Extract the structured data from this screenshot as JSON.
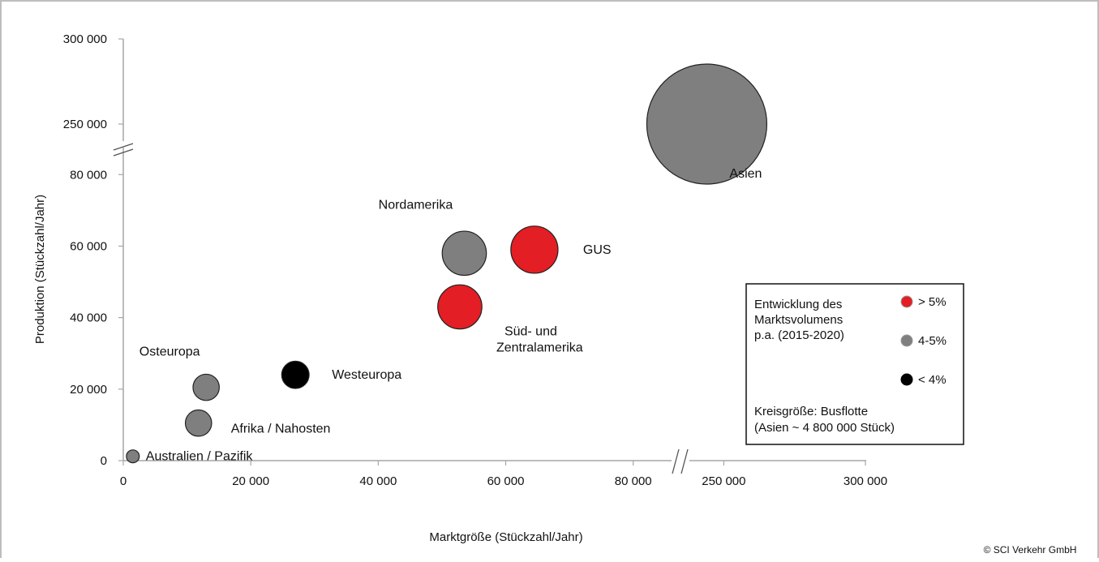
{
  "chart_data": {
    "type": "scatter",
    "subtype": "bubble",
    "title": "",
    "xlabel": "Marktgröße (Stückzahl/Jahr)",
    "ylabel": "Produktion (Stückzahl/Jahr)",
    "axis_breaks": true,
    "grid": false,
    "x_ticks": [
      "0",
      "20 000",
      "40 000",
      "60 000",
      "80 000",
      "250 000",
      "300 000"
    ],
    "y_ticks": [
      "0",
      "20 000",
      "40 000",
      "60 000",
      "80 000",
      "250 000",
      "300 000"
    ],
    "x_segments": [
      {
        "from": 0,
        "to": 85000
      },
      {
        "from": 235000,
        "to": 300000
      }
    ],
    "y_segments": [
      {
        "from": 0,
        "to": 88000
      },
      {
        "from": 240000,
        "to": 300000
      }
    ],
    "colors": {
      "gt5": "#e31e24",
      "mid": "#7f7f7f",
      "lt4": "#000000"
    },
    "points": [
      {
        "label": "Asien",
        "x": 244000,
        "y": 250000,
        "size": 4800000,
        "color_class": "mid"
      },
      {
        "label": "Nordamerika",
        "x": 53500,
        "y": 58000,
        "size": 650000,
        "color_class": "mid"
      },
      {
        "label": "GUS",
        "x": 64500,
        "y": 59000,
        "size": 740000,
        "color_class": "gt5"
      },
      {
        "label": "Süd- und Zentralamerika",
        "x": 52800,
        "y": 43000,
        "size": 650000,
        "color_class": "gt5"
      },
      {
        "label": "Westeuropa",
        "x": 27000,
        "y": 24000,
        "size": 250000,
        "color_class": "lt4"
      },
      {
        "label": "Osteuropa",
        "x": 13000,
        "y": 20500,
        "size": 230000,
        "color_class": "mid"
      },
      {
        "label": "Afrika / Nahosten",
        "x": 11800,
        "y": 10500,
        "size": 230000,
        "color_class": "mid"
      },
      {
        "label": "Australien / Pazifik",
        "x": 1500,
        "y": 1200,
        "size": 55000,
        "color_class": "mid"
      }
    ],
    "legend": {
      "title": "Entwicklung des Marktsvolumens p.a. (2015-2020)",
      "title_lines": [
        "Entwicklung des",
        "Marktsvolumens",
        "p.a. (2015-2020)"
      ],
      "items": [
        {
          "label": "> 5%",
          "color_class": "gt5"
        },
        {
          "label": "4-5%",
          "color_class": "mid"
        },
        {
          "label": "< 4%",
          "color_class": "lt4"
        }
      ],
      "note_lines": [
        "Kreisgröße: Busflotte",
        "(Asien ~ 4 800 000 Stück)"
      ],
      "position": "bottom-right"
    },
    "copyright": "© SCI Verkehr GmbH"
  }
}
